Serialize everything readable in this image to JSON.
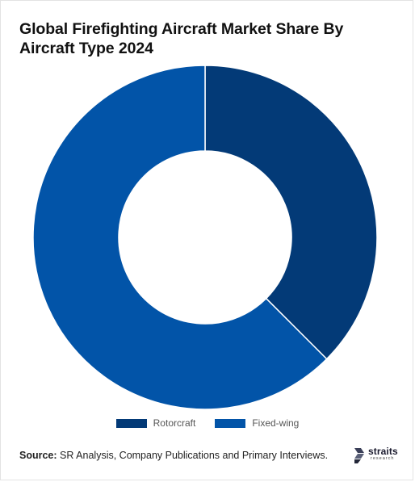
{
  "title": "Global Firefighting Aircraft Market Share By Aircraft Type 2024",
  "chart_data": {
    "type": "pie",
    "title": "Global Firefighting Aircraft Market Share By Aircraft Type 2024",
    "donut": true,
    "categories": [
      "Rotorcraft",
      "Fixed-wing"
    ],
    "values": [
      37.5,
      62.5
    ],
    "colors": [
      "#033a77",
      "#0254a8"
    ],
    "legend_position": "bottom"
  },
  "legend": {
    "items": [
      {
        "label": "Rotorcraft",
        "color": "#033a77"
      },
      {
        "label": "Fixed-wing",
        "color": "#0254a8"
      }
    ]
  },
  "source": {
    "label": "Source:",
    "text": "SR Analysis, Company Publications and Primary Interviews."
  },
  "brand": {
    "name": "straits",
    "sub": "research"
  }
}
